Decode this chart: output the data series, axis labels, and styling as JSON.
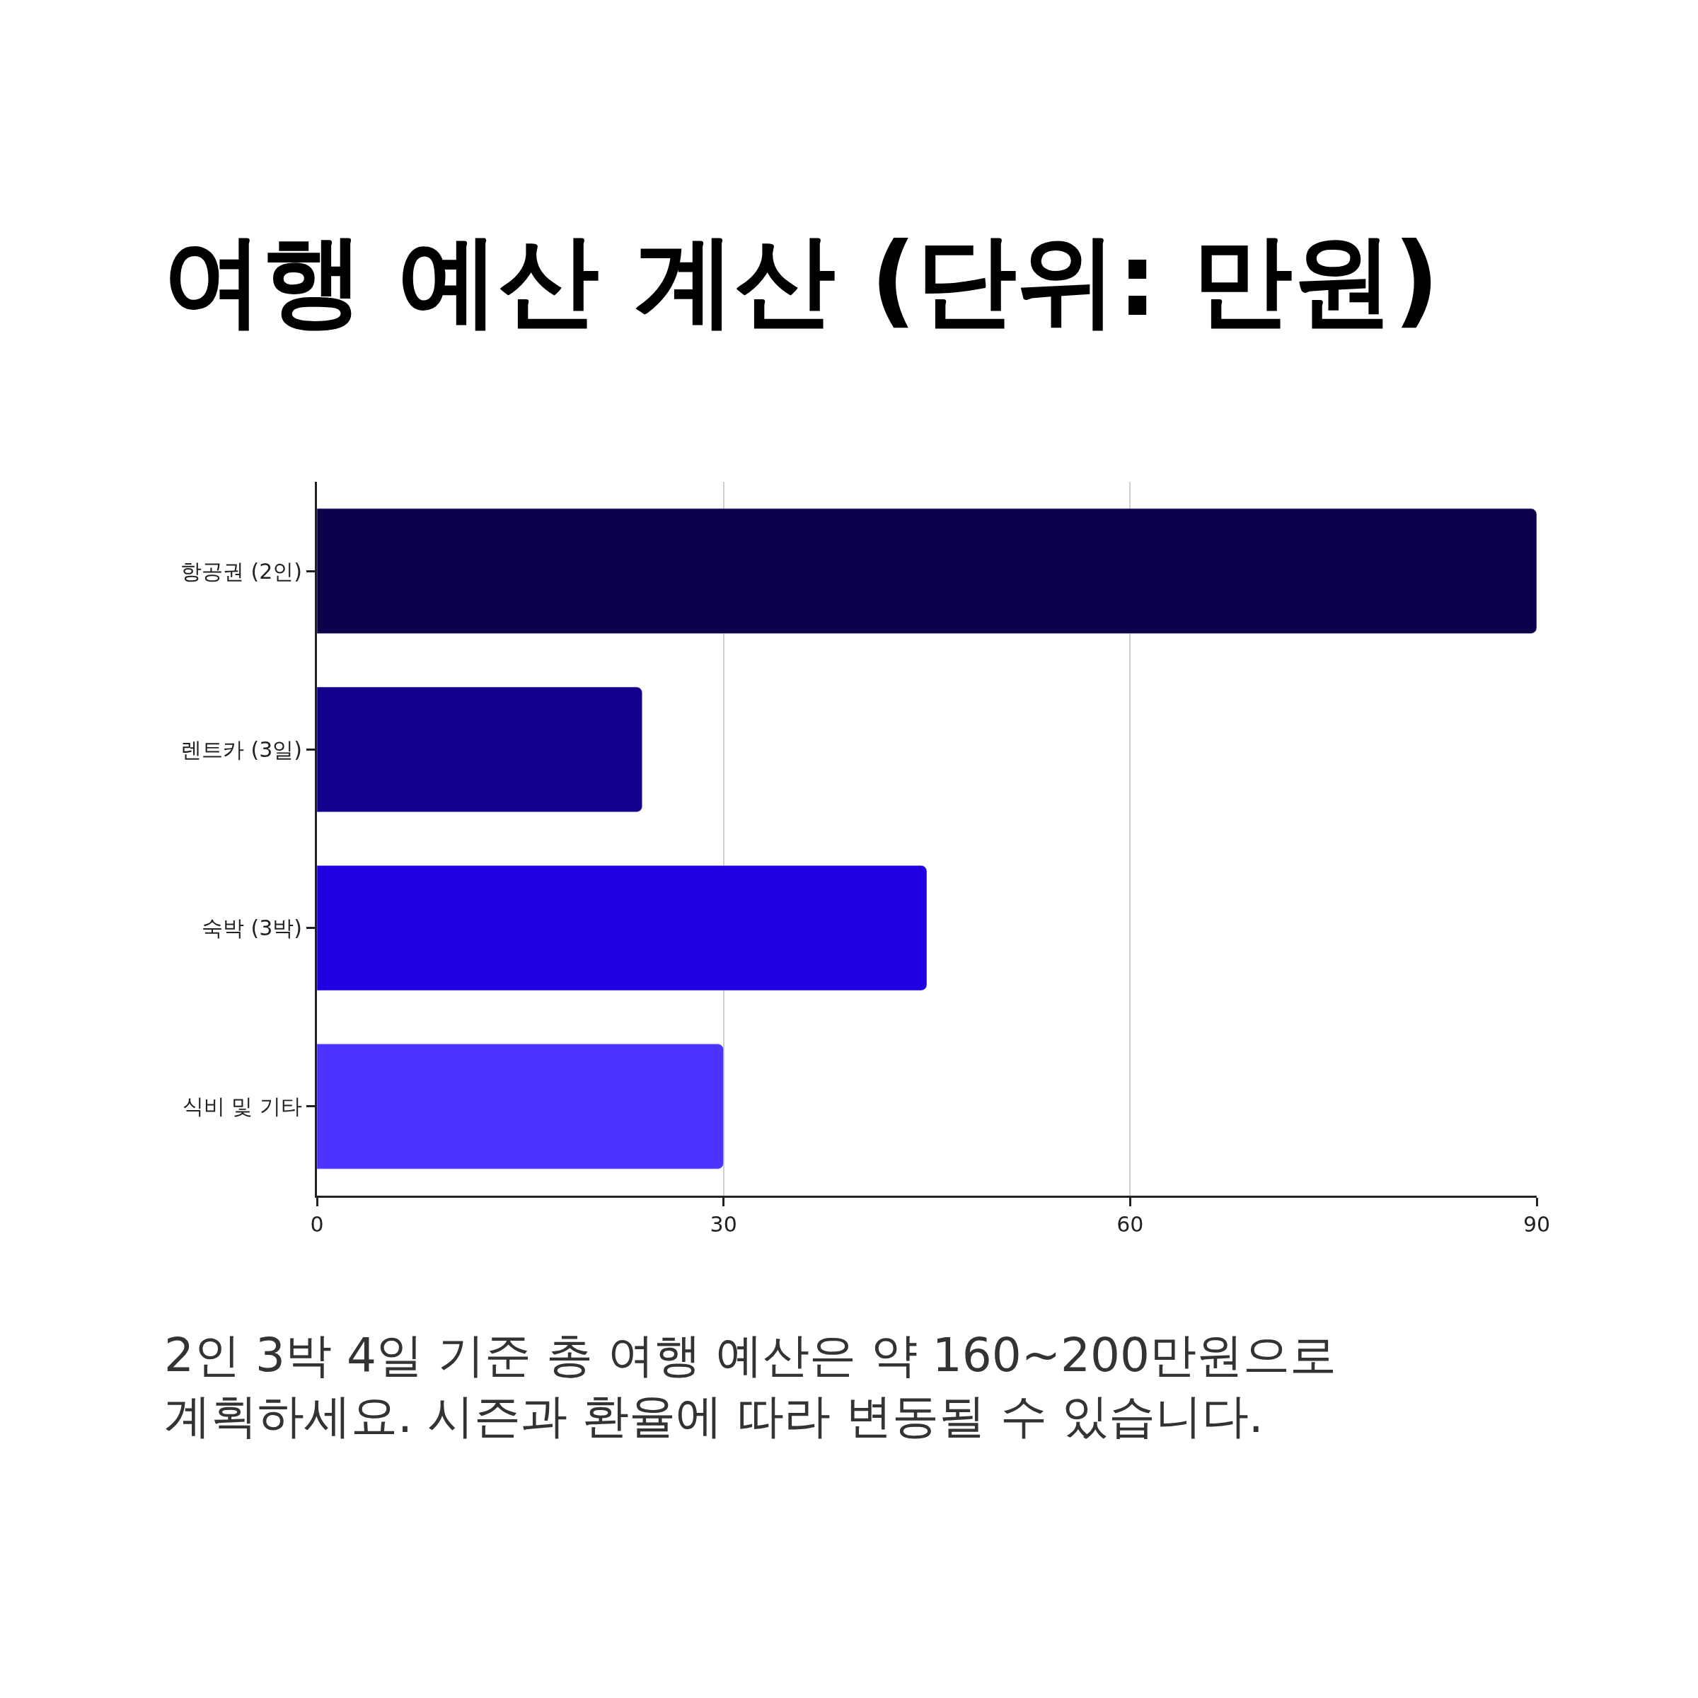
{
  "chart_data": {
    "type": "bar",
    "orientation": "horizontal",
    "title": "여행 예산 계산 (단위: 만원)",
    "categories": [
      "항공권 (2인)",
      "렌트카 (3일)",
      "숙박 (3박)",
      "식비 및 기타"
    ],
    "values": [
      90,
      24,
      45,
      30
    ],
    "colors": [
      "#0d004a",
      "#13008c",
      "#1e00e0",
      "#4d33ff"
    ],
    "xlim": [
      0,
      90
    ],
    "xticks": [
      0,
      30,
      60,
      90
    ],
    "grid": "x",
    "annotations": [
      "2인 3박 4일 기준 총 여행 예산은 약 160~200만원으로\n계획하세요. 시즌과 환율에 따라 변동될 수 있습니다."
    ]
  }
}
